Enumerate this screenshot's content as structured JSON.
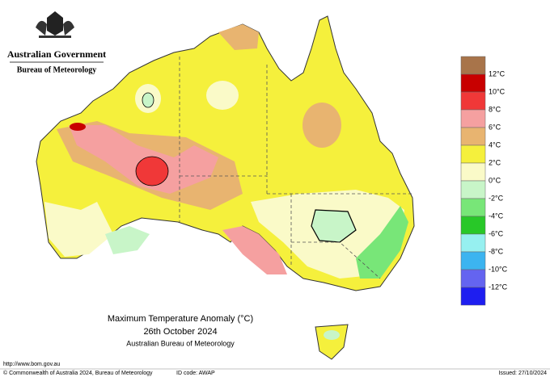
{
  "header": {
    "government": "Australian Government",
    "agency": "Bureau of Meteorology"
  },
  "map": {
    "title": "Maximum Temperature Anomaly (°C)",
    "date": "26th October 2024",
    "source": "Australian Bureau of Meteorology"
  },
  "legend": {
    "colors": [
      "#a8744a",
      "#c80000",
      "#f03838",
      "#f5a0a0",
      "#e8b470",
      "#f5f03c",
      "#fafac8",
      "#c8f5c8",
      "#78e678",
      "#28c828",
      "#96f0f0",
      "#3cb4f0",
      "#6464f0",
      "#1e1ef0"
    ],
    "labels": [
      "12°C",
      "10°C",
      "8°C",
      "6°C",
      "4°C",
      "2°C",
      "0°C",
      "-2°C",
      "-4°C",
      "-6°C",
      "-8°C",
      "-10°C",
      "-12°C"
    ]
  },
  "footer": {
    "url": "http://www.bom.gov.au",
    "copyright": "© Commonwealth of Australia 2024, Bureau of Meteorology",
    "id_code": "ID code: AWAP",
    "issued": "Issued: 27/10/2024"
  }
}
